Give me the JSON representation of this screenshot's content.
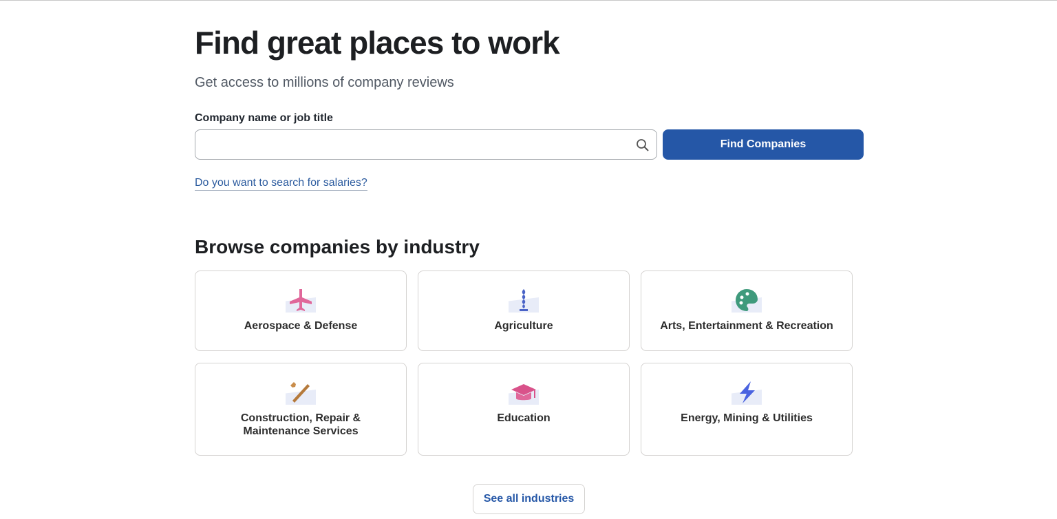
{
  "hero": {
    "title": "Find great places to work",
    "subtitle": "Get access to millions of company reviews"
  },
  "search": {
    "label": "Company name or job title",
    "value": "",
    "placeholder": "",
    "button": "Find Companies",
    "salary_link": "Do you want to search for salaries?"
  },
  "browse": {
    "heading": "Browse companies by industry",
    "see_all": "See all industries",
    "industries": [
      {
        "label": "Aerospace & Defense",
        "icon": "airplane-icon",
        "color": "#e0679a"
      },
      {
        "label": "Agriculture",
        "icon": "wheat-icon",
        "color": "#4a63c7"
      },
      {
        "label": "Arts, Entertainment & Recreation",
        "icon": "palette-icon",
        "color": "#3f9a7c"
      },
      {
        "label": "Construction, Repair & Maintenance Services",
        "icon": "tools-icon",
        "color": "#b57a3c"
      },
      {
        "label": "Education",
        "icon": "graduation-cap-icon",
        "color": "#d9528a"
      },
      {
        "label": "Energy, Mining & Utilities",
        "icon": "lightning-icon",
        "color": "#4a63e0"
      }
    ]
  }
}
